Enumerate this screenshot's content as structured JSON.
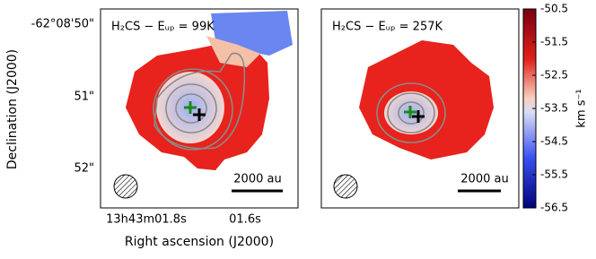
{
  "chart_data": {
    "type": "map",
    "xlabel": "Right ascension (J2000)",
    "ylabel": "Declination (J2000)",
    "xtick_labels": [
      "13h43m01.8s",
      "01.6s"
    ],
    "ytick_labels": [
      "-62°08'50\"",
      "51\"",
      "52\""
    ],
    "panels": [
      {
        "title": "H₂CS − Eᵤₚ = 99K",
        "scalebar": "2000 au"
      },
      {
        "title": "H₂CS − Eᵤₚ = 257K",
        "scalebar": "2000 au"
      }
    ],
    "colorbar": {
      "label": "km s⁻¹",
      "ylim": [
        -56.5,
        -50.5
      ],
      "yticks": [
        -56.5,
        -55.5,
        -54.5,
        -53.5,
        -52.5,
        -51.5,
        -50.5
      ]
    }
  }
}
